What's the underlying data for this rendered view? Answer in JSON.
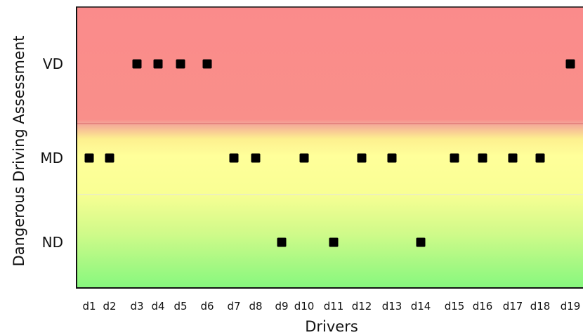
{
  "chart_data": {
    "type": "scatter",
    "title": "",
    "xlabel": "Drivers",
    "ylabel": "Dangerous Driving Assessment",
    "x": [
      "d1",
      "d2",
      "d3",
      "d4",
      "d5",
      "d6",
      "d7",
      "d8",
      "d9",
      "d10",
      "d11",
      "d12",
      "d13",
      "d14",
      "d15",
      "d16",
      "d17",
      "d18",
      "d19"
    ],
    "y_categories": [
      "ND",
      "MD",
      "VD"
    ],
    "values": [
      "MD",
      "MD",
      "VD",
      "VD",
      "VD",
      "VD",
      "MD",
      "MD",
      "ND",
      "MD",
      "ND",
      "MD",
      "MD",
      "ND",
      "MD",
      "MD",
      "MD",
      "MD",
      "VD"
    ],
    "bands": [
      {
        "category": "VD",
        "color": "#f98b8b"
      },
      {
        "category": "MD",
        "color": "#ffff99"
      },
      {
        "category": "ND",
        "color": "#8ef58a"
      }
    ],
    "marker_color": "#000000",
    "grid": false,
    "legend": "none"
  }
}
